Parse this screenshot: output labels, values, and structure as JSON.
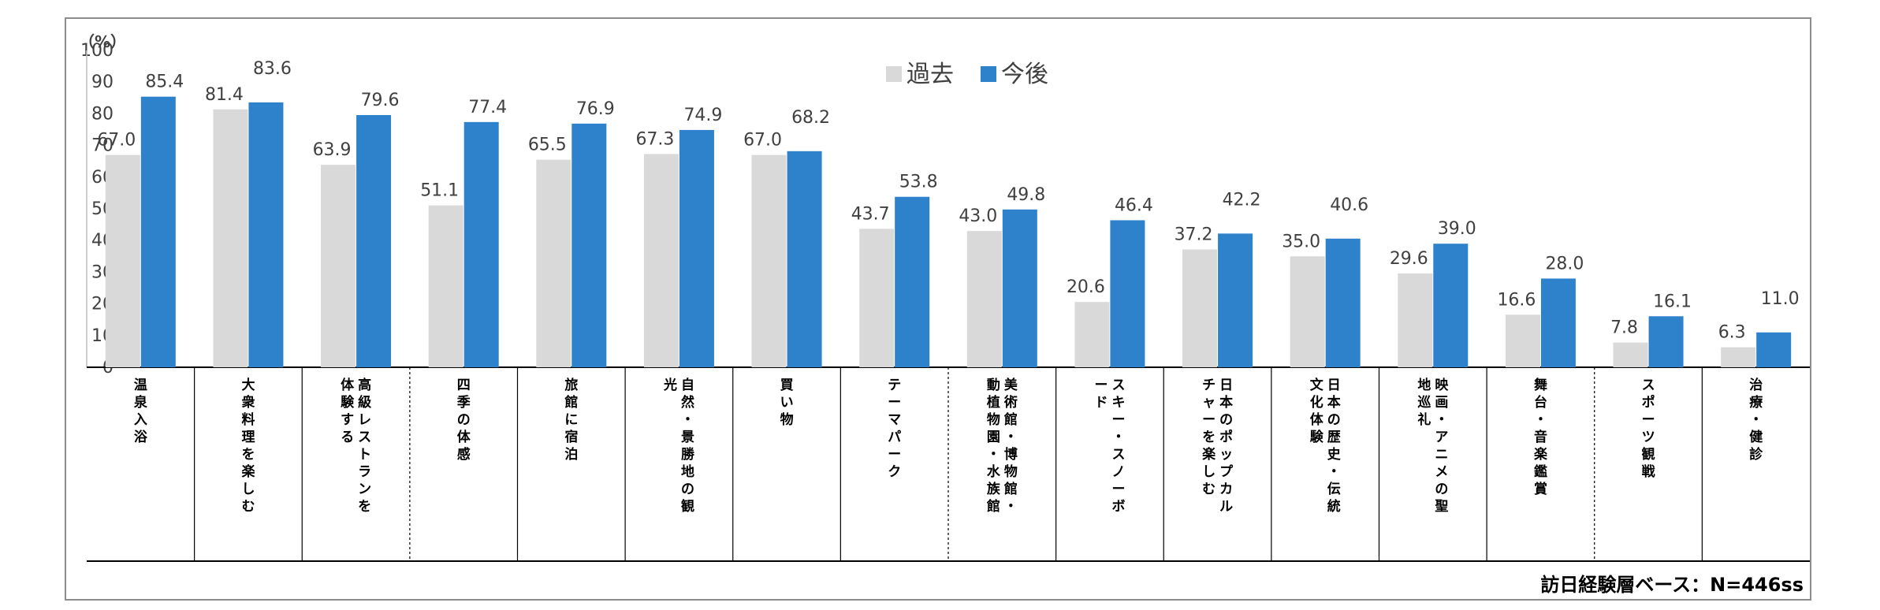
{
  "chart_data": {
    "type": "bar",
    "unit_label": "（%）",
    "ylim": [
      0,
      100
    ],
    "yticks": [
      0,
      10,
      20,
      30,
      40,
      50,
      60,
      70,
      80,
      90,
      100
    ],
    "categories": [
      [
        "温",
        "泉",
        "入",
        "浴"
      ],
      [
        "大",
        "衆",
        "料",
        "理",
        "を",
        "楽",
        "し",
        "む"
      ],
      [
        "高",
        "級",
        "レ",
        "ス",
        "ト",
        "ラ",
        "ン",
        "を",
        "体",
        "験",
        "す",
        "る"
      ],
      [
        "四",
        "季",
        "の",
        "体",
        "感"
      ],
      [
        "旅",
        "館",
        "に",
        "宿",
        "泊"
      ],
      [
        "自",
        "然",
        "・",
        "景",
        "勝",
        "地",
        "の",
        "観",
        "光"
      ],
      [
        "買",
        "い",
        "物"
      ],
      [
        "テ",
        "ー",
        "マ",
        "パ",
        "ー",
        "ク"
      ],
      [
        "美",
        "術",
        "館",
        "・",
        "博",
        "物",
        "館",
        "・",
        "動",
        "植",
        "物",
        "園",
        "・",
        "水",
        "族",
        "館"
      ],
      [
        "ス",
        "キ",
        "ー",
        "・",
        "ス",
        "ノ",
        "ー",
        "ボ",
        "ー",
        "ド"
      ],
      [
        "日",
        "本",
        "の",
        "ポ",
        "ッ",
        "プ",
        "カ",
        "ル",
        "チ",
        "ャ",
        "ー",
        "を",
        "楽",
        "し",
        "む"
      ],
      [
        "日",
        "本",
        "の",
        "歴",
        "史",
        "・",
        "伝",
        "統",
        "文",
        "化",
        "体",
        "験"
      ],
      [
        "映",
        "画",
        "・",
        "ア",
        "ニ",
        "メ",
        "の",
        "聖",
        "地",
        "巡",
        "礼"
      ],
      [
        "舞",
        "台",
        "・",
        "音",
        "楽",
        "鑑",
        "賞"
      ],
      [
        "ス",
        "ポ",
        "ー",
        "ツ",
        "観",
        "戦"
      ],
      [
        "治",
        "療",
        "・",
        "健",
        "診"
      ]
    ],
    "series": [
      {
        "name": "過去",
        "color": "#d9d9d9",
        "values": [
          67.0,
          81.4,
          63.9,
          51.1,
          65.5,
          67.3,
          67.0,
          43.7,
          43.0,
          20.6,
          37.2,
          35.0,
          29.6,
          16.6,
          7.8,
          6.3
        ],
        "labels": [
          "67.0",
          "81.4",
          "63.9",
          "51.1",
          "65.5",
          "67.3",
          "67.0",
          "43.7",
          "43.0",
          "20.6",
          "37.2",
          "35.0",
          "29.6",
          "16.6",
          "7.8",
          "6.3"
        ]
      },
      {
        "name": "今後",
        "color": "#2e82cc",
        "values": [
          85.4,
          83.6,
          79.6,
          77.4,
          76.9,
          74.9,
          68.2,
          53.8,
          49.8,
          46.4,
          42.2,
          40.6,
          39.0,
          28.0,
          16.1,
          11.0
        ],
        "labels": [
          "85.4",
          "83.6",
          "79.6",
          "77.4",
          "76.9",
          "74.9",
          "68.2",
          "53.8",
          "49.8",
          "46.4",
          "42.2",
          "40.6",
          "39.0",
          "28.0",
          "16.1",
          "11.0"
        ]
      }
    ],
    "legend_position": "top-center",
    "grid": false,
    "note": "訪日経験層ベース：N=446ss"
  }
}
